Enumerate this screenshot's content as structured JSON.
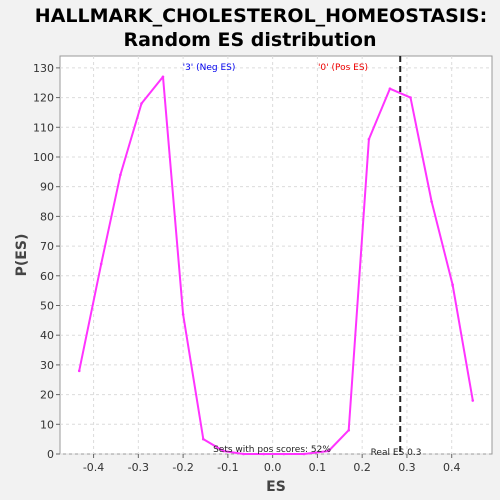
{
  "chart_data": {
    "type": "line",
    "title_line1": "HALLMARK_CHOLESTEROL_HOMEOSTASIS:",
    "title_line2": "Random ES distribution",
    "xlabel": "ES",
    "ylabel": "P(ES)",
    "xlim": [
      -0.475,
      0.49
    ],
    "ylim": [
      0,
      134
    ],
    "x_ticks": [
      -0.4,
      -0.3,
      -0.2,
      -0.1,
      0.0,
      0.1,
      0.2,
      0.3,
      0.4
    ],
    "x_tick_labels": [
      "-0.4",
      "-0.3",
      "-0.2",
      "-0.1",
      "0.0",
      "0.1",
      "0.2",
      "0.3",
      "0.4"
    ],
    "y_ticks": [
      0,
      10,
      20,
      30,
      40,
      50,
      60,
      70,
      80,
      90,
      100,
      110,
      120,
      130
    ],
    "y_tick_labels": [
      "0",
      "10",
      "20",
      "30",
      "40",
      "50",
      "60",
      "70",
      "80",
      "90",
      "100",
      "110",
      "120",
      "130"
    ],
    "grid": true,
    "series": [
      {
        "color": "#ff33ff",
        "x": [
          -0.432,
          -0.383,
          -0.34,
          -0.293,
          -0.245,
          -0.2,
          -0.155,
          -0.11,
          -0.065,
          -0.02,
          0.025,
          0.07,
          0.125,
          0.17,
          0.215,
          0.262,
          0.308,
          0.355,
          0.402,
          0.447
        ],
        "y": [
          28,
          64,
          94,
          118,
          127,
          47,
          5,
          1,
          0,
          0,
          0,
          0,
          1,
          8,
          106,
          123,
          120,
          85,
          57,
          18
        ]
      }
    ],
    "annotations": {
      "neg_label": "'3' (Neg ES)",
      "neg_color": "#0000ee",
      "pos_label": "'0' (Pos ES)",
      "pos_color": "#ee0000",
      "sets_label": "Sets with pos scores: 52%",
      "real_es_label": "Real ES 0.3",
      "real_es_value": 0.285
    }
  }
}
